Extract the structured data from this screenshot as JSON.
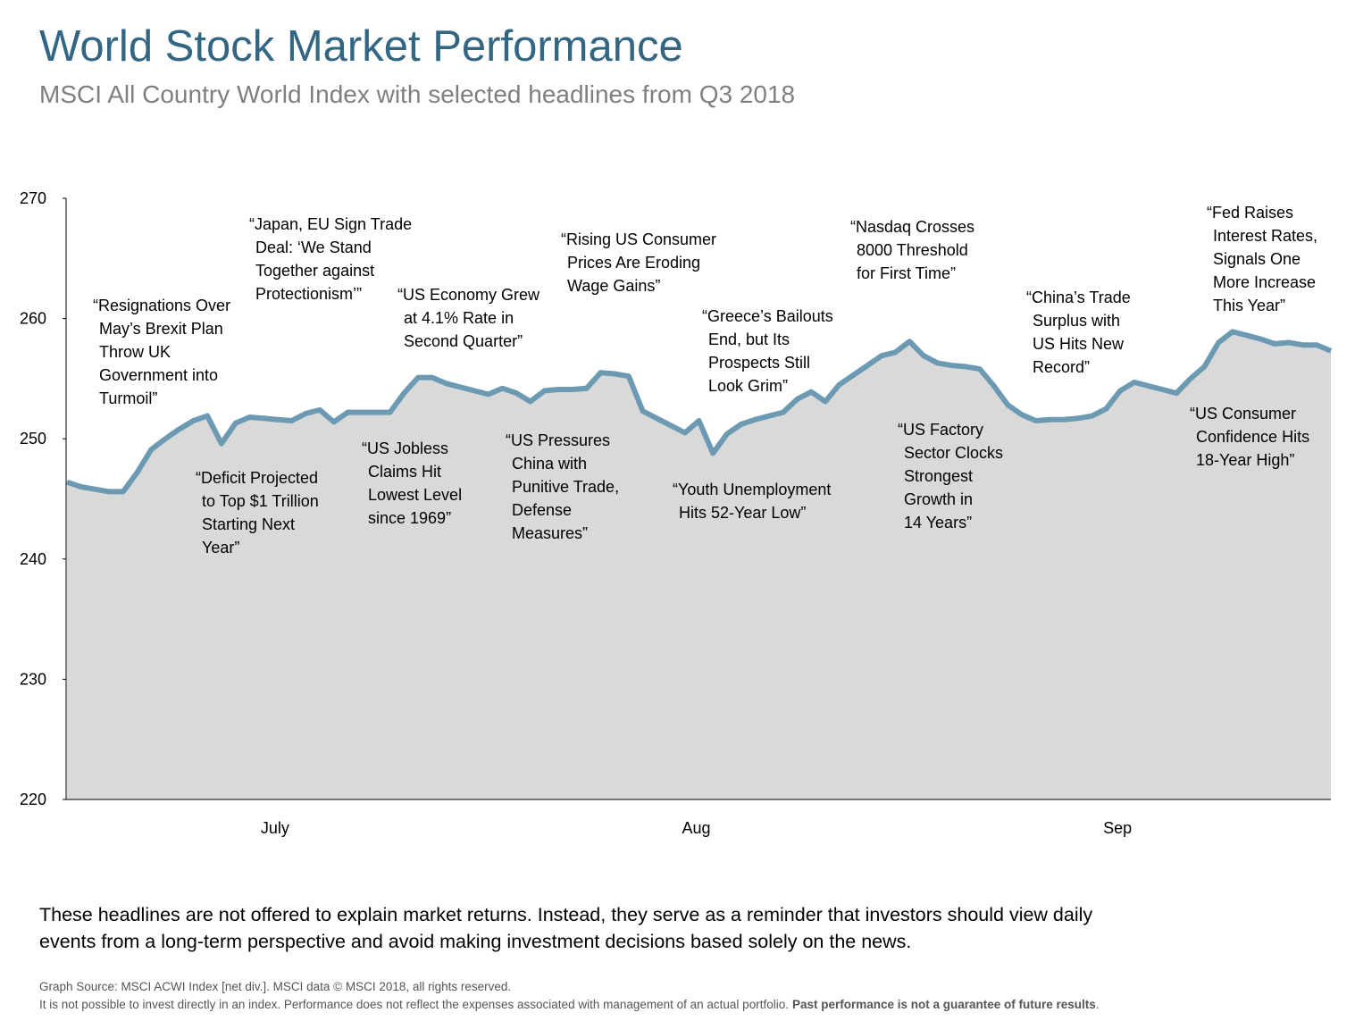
{
  "chart_data": {
    "type": "area",
    "title": "World Stock Market Performance",
    "subtitle": "MSCI All Country World Index with selected headlines from Q3 2018",
    "color": "#6d9ab3",
    "fill": "#d9d9d9",
    "ylim": [
      220,
      270
    ],
    "yticks": [
      220,
      230,
      240,
      250,
      260,
      270
    ],
    "categories": [
      null,
      null,
      null,
      null,
      null,
      null,
      null,
      null,
      null,
      null,
      null,
      null,
      null,
      null,
      null,
      "July",
      null,
      null,
      null,
      null,
      null,
      null,
      null,
      null,
      null,
      null,
      null,
      null,
      null,
      null,
      null,
      null,
      null,
      null,
      null,
      null,
      null,
      null,
      null,
      null,
      null,
      null,
      null,
      null,
      null,
      "Aug",
      null,
      null,
      null,
      null,
      null,
      null,
      null,
      null,
      null,
      null,
      null,
      null,
      null,
      null,
      null,
      null,
      null,
      null,
      null,
      null,
      null,
      null,
      null,
      null,
      null,
      null,
      null,
      null,
      null,
      "Sep",
      null,
      null,
      null,
      null,
      null,
      null,
      null,
      null,
      null,
      null,
      null,
      null,
      null,
      null,
      null
    ],
    "values": [
      246.4,
      246.0,
      245.8,
      245.6,
      245.6,
      247.2,
      249.1,
      250.0,
      250.8,
      251.5,
      251.9,
      249.6,
      251.3,
      251.8,
      251.7,
      251.6,
      251.5,
      252.1,
      252.4,
      251.4,
      252.2,
      252.2,
      252.2,
      252.2,
      253.8,
      255.1,
      255.1,
      254.6,
      254.3,
      254.0,
      253.7,
      254.2,
      253.8,
      253.1,
      254.0,
      254.1,
      254.1,
      254.2,
      255.5,
      255.4,
      255.2,
      252.3,
      251.7,
      251.1,
      250.5,
      251.5,
      248.8,
      250.4,
      251.2,
      251.6,
      251.9,
      252.2,
      253.3,
      253.9,
      253.1,
      254.5,
      255.3,
      256.1,
      256.9,
      257.2,
      258.1,
      256.9,
      256.3,
      256.1,
      256.0,
      255.8,
      254.4,
      252.8,
      252.0,
      251.5,
      251.6,
      251.6,
      251.7,
      251.9,
      252.5,
      254.0,
      254.7,
      254.4,
      254.1,
      253.8,
      255.0,
      256.0,
      258.0,
      258.9,
      258.6,
      258.3,
      257.9,
      258.0,
      257.8,
      257.8,
      257.3
    ],
    "annotations": [
      [
        "“Resignations Over",
        "May’s Brexit Plan",
        "Throw UK",
        "Government into",
        "Turmoil”"
      ],
      [
        "“Deficit Projected",
        "to Top $1 Trillion",
        "Starting Next",
        "Year”"
      ],
      [
        "“Japan, EU Sign Trade",
        "Deal: ‘We Stand",
        "Together against",
        "Protectionism’”"
      ],
      [
        "“US Jobless",
        "Claims Hit",
        "Lowest Level",
        "since 1969”"
      ],
      [
        "“US Economy Grew",
        "at 4.1% Rate in",
        "Second Quarter”"
      ],
      [
        "“US Pressures",
        "China with",
        "Punitive Trade,",
        "Defense",
        "Measures”"
      ],
      [
        "“Rising US Consumer",
        "Prices Are Eroding",
        "Wage Gains”"
      ],
      [
        "“Youth Unemployment",
        "Hits 52-Year Low”"
      ],
      [
        "“Greece’s Bailouts",
        "End, but Its",
        "Prospects Still",
        "Look Grim”"
      ],
      [
        "“Nasdaq Crosses",
        "8000 Threshold",
        "for First Time”"
      ],
      [
        "“US Factory",
        "Sector Clocks",
        "Strongest",
        "Growth in",
        "14 Years”"
      ],
      [
        "“China’s Trade",
        "Surplus with",
        "US Hits New",
        "Record”"
      ],
      [
        "“US Consumer",
        "Confidence Hits",
        "18-Year High”"
      ],
      [
        "“Fed Raises",
        "Interest Rates,",
        "Signals One",
        "More Increase",
        "This Year”"
      ]
    ]
  },
  "footnote": [
    "These headlines are not offered to explain market returns. Instead, they serve as a reminder that investors should view daily",
    "events from a long-term perspective and avoid making investment decisions based solely on the news."
  ],
  "source": "Graph Source: MSCI ACWI Index [net div.]. MSCI data © MSCI 2018, all rights reserved.",
  "disclaimer": [
    "It is not possible to invest directly in an index. Performance does not reflect the expenses associated with management of an actual portfolio.",
    "Past performance is not a guarantee of future results",
    "."
  ]
}
